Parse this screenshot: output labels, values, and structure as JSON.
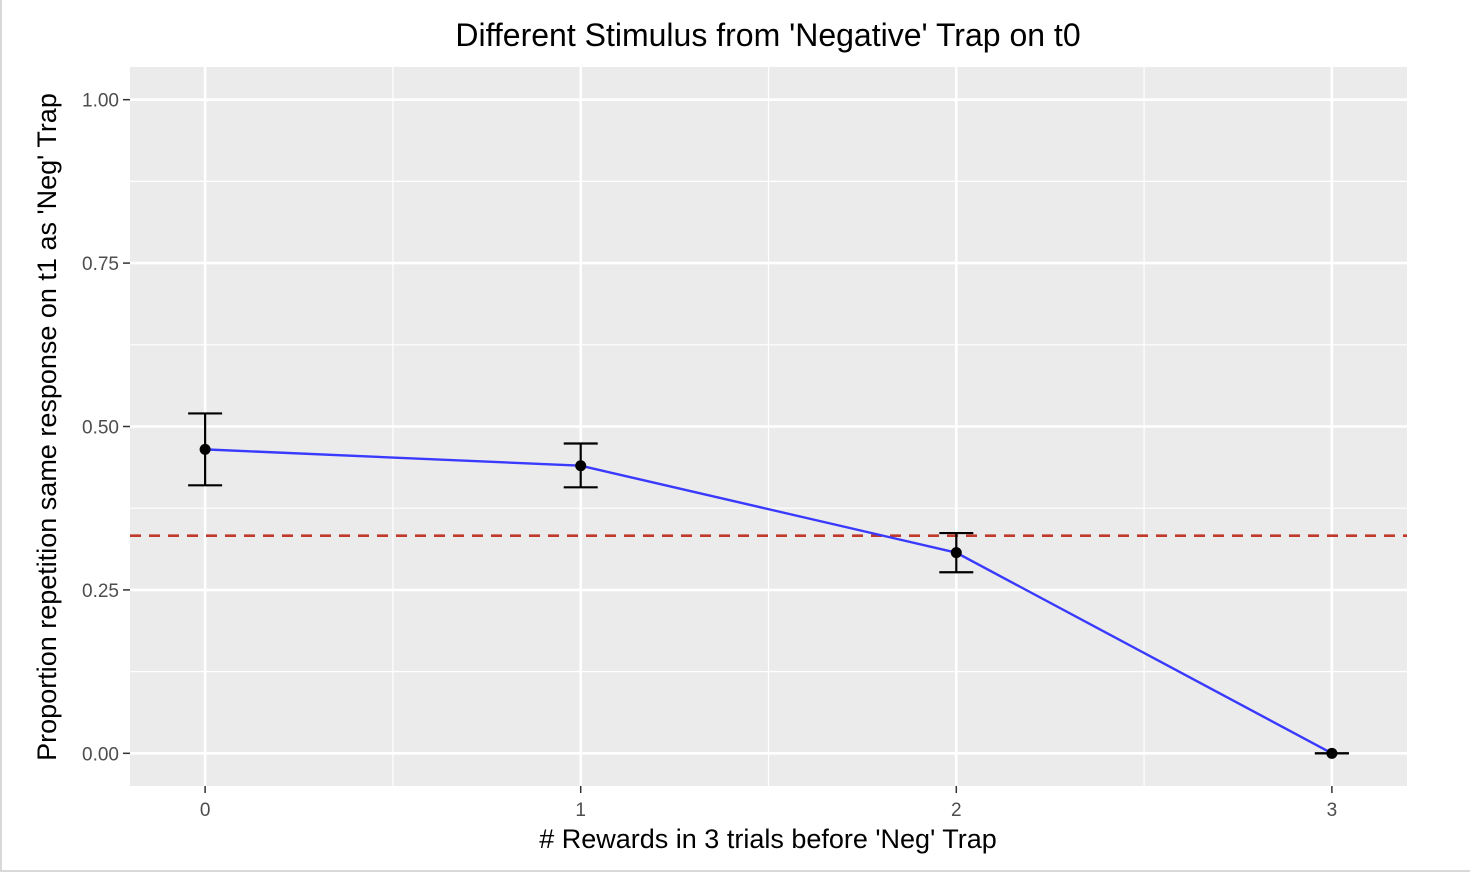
{
  "chart_data": {
    "type": "line",
    "title": "Different Stimulus from 'Negative' Trap on t0",
    "xlabel": "# Rewards in 3 trials before 'Neg' Trap",
    "ylabel": "Proportion repetition same response on t1 as 'Neg' Trap",
    "x_ticks": [
      "0",
      "1",
      "2",
      "3"
    ],
    "y_ticks": [
      "0.00",
      "0.25",
      "0.50",
      "0.75",
      "1.00"
    ],
    "xlim": [
      -0.2,
      3.2
    ],
    "ylim": [
      -0.05,
      1.05
    ],
    "grid": true,
    "series": [
      {
        "color": "#3a3aff",
        "x": [
          0,
          1,
          2,
          3
        ],
        "y": [
          0.465,
          0.44,
          0.307,
          0.0
        ],
        "error_low": [
          0.41,
          0.407,
          0.277,
          0.0
        ],
        "error_high": [
          0.52,
          0.474,
          0.337,
          0.0
        ]
      }
    ],
    "reference_line": {
      "y": 0.333,
      "style": "dashed",
      "color": "#c0392b"
    },
    "panel_background": "#ebebeb",
    "grid_color": "#ffffff"
  }
}
